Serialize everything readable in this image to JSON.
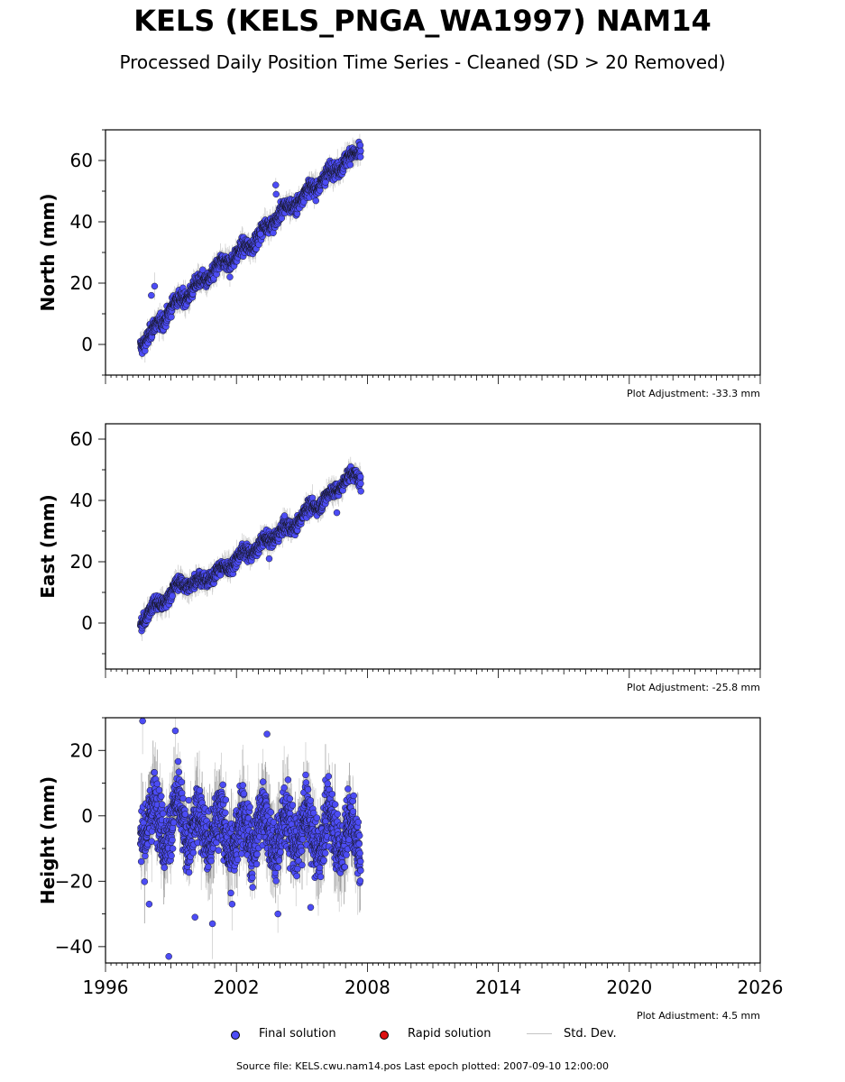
{
  "title": "KELS (KELS_PNGA_WA1997) NAM14",
  "subtitle": "Processed Daily Position Time Series - Cleaned (SD > 20 Removed)",
  "legend": {
    "final_label": "Final solution",
    "rapid_label": "Rapid solution",
    "std_label": "Std. Dev.",
    "final_color": "#4c4cf5",
    "rapid_color": "#dd1111",
    "std_color": "#c4c4c4"
  },
  "source_text": "Source file: KELS.cwu.nam14.pos  Last epoch plotted: 2007-09-10 12:00:00",
  "chart_data": [
    {
      "type": "scatter",
      "ylabel": "North (mm)",
      "xlim": [
        1996,
        2026
      ],
      "ylim": [
        -10,
        70
      ],
      "yticks": [
        0,
        20,
        40,
        60
      ],
      "xticks": [
        1996,
        2002,
        2008,
        2014,
        2020,
        2026
      ],
      "show_xtick_labels": false,
      "adjustment_text": "Plot Adjustment: -33.3 mm",
      "series": [
        {
          "name": "Final solution",
          "data_start": 1997.6,
          "data_end": 2007.69,
          "x": [
            1997.6,
            1998.0,
            1998.5,
            1999.0,
            1999.5,
            2000.0,
            2000.5,
            2001.0,
            2001.5,
            2002.0,
            2002.5,
            2003.0,
            2003.5,
            2004.0,
            2004.5,
            2005.0,
            2005.5,
            2006.0,
            2006.5,
            2007.0,
            2007.5,
            2007.69
          ],
          "y": [
            0,
            3,
            7,
            12,
            15,
            18,
            21,
            24,
            27,
            29,
            32,
            35,
            39,
            43,
            45,
            48,
            51,
            54,
            57,
            60,
            62,
            64
          ],
          "scatter_mm": 2.0,
          "outliers": [
            [
              1998.25,
              19
            ],
            [
              1998.1,
              16
            ],
            [
              2003.8,
              52
            ],
            [
              2003.82,
              49
            ],
            [
              2001.7,
              22
            ],
            [
              2003.1,
              36
            ]
          ]
        }
      ]
    },
    {
      "type": "scatter",
      "ylabel": "East (mm)",
      "xlim": [
        1996,
        2026
      ],
      "ylim": [
        -15,
        65
      ],
      "yticks": [
        0,
        20,
        40,
        60
      ],
      "xticks": [
        1996,
        2002,
        2008,
        2014,
        2020,
        2026
      ],
      "show_xtick_labels": false,
      "adjustment_text": "Plot Adjustment: -25.8 mm",
      "series": [
        {
          "name": "Final solution",
          "data_start": 1997.6,
          "data_end": 2007.69,
          "x": [
            1997.6,
            1998.0,
            1998.5,
            1999.0,
            1999.5,
            2000.0,
            2000.5,
            2001.0,
            2001.5,
            2002.0,
            2002.5,
            2003.0,
            2003.5,
            2004.0,
            2004.5,
            2005.0,
            2005.5,
            2006.0,
            2006.5,
            2007.0,
            2007.5,
            2007.69
          ],
          "y": [
            0,
            4,
            6,
            10,
            13,
            13,
            14,
            16,
            18,
            21,
            23,
            25,
            27,
            30,
            31,
            35,
            38,
            40,
            43,
            47,
            48,
            47
          ],
          "scatter_mm": 1.8,
          "outliers": [
            [
              2004.2,
              35
            ],
            [
              2006.6,
              36
            ],
            [
              2003.5,
              21
            ],
            [
              2007.7,
              43
            ]
          ]
        }
      ]
    },
    {
      "type": "scatter",
      "ylabel": "Height (mm)",
      "xlim": [
        1996,
        2026
      ],
      "ylim": [
        -45,
        30
      ],
      "yticks": [
        -40,
        -20,
        0,
        20
      ],
      "xticks": [
        1996,
        2002,
        2008,
        2014,
        2020,
        2026
      ],
      "show_xtick_labels": true,
      "adjustment_text": "Plot Adjustment: 4.5 mm",
      "series": [
        {
          "name": "Final solution",
          "data_start": 1997.6,
          "data_end": 2007.69,
          "x": [
            1997.6,
            1998.5,
            1999.0,
            1999.5,
            2000.0,
            2000.5,
            2001.0,
            2001.5,
            2002.0,
            2002.5,
            2003.0,
            2003.5,
            2004.0,
            2004.5,
            2005.0,
            2005.5,
            2006.0,
            2006.5,
            2007.0,
            2007.5,
            2007.69
          ],
          "y": [
            0,
            -2,
            -3,
            0,
            -5,
            -4,
            -3,
            -6,
            -6,
            -5,
            -3,
            -5,
            -6,
            -5,
            -4,
            -6,
            -5,
            -4,
            -6,
            -8,
            -7
          ],
          "scatter_mm": 9.0,
          "outliers": [
            [
              1997.7,
              29
            ],
            [
              1998.9,
              -43
            ],
            [
              1999.2,
              26
            ],
            [
              2000.1,
              -31
            ],
            [
              2000.9,
              -33
            ],
            [
              2003.4,
              25
            ],
            [
              2003.9,
              -30
            ],
            [
              1998.0,
              -27
            ],
            [
              2001.8,
              -27
            ],
            [
              2005.4,
              -28
            ]
          ]
        }
      ]
    }
  ]
}
